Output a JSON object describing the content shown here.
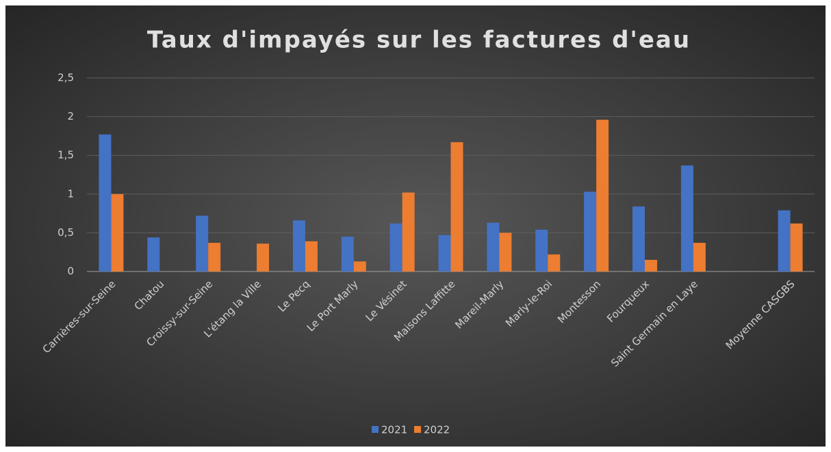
{
  "chart_data": {
    "type": "bar",
    "title": "Taux d'impayés sur les factures d'eau",
    "categories": [
      "Carrières-sur-Seine",
      "Chatou",
      "Croissy-sur-Seine",
      "L'étang la Ville",
      "Le Pecq",
      "Le Port Marly",
      "Le Vésinet",
      "Maisons Laffitte",
      "Mareil-Marly",
      "Marly-le-Roi",
      "Montesson",
      "Fourqueux",
      "Saint Germain en Laye",
      null,
      "Moyenne CASGBS"
    ],
    "series": [
      {
        "name": "2021",
        "color": "#4472c4",
        "values": [
          1.77,
          0.44,
          0.72,
          null,
          0.66,
          0.45,
          0.62,
          0.47,
          0.63,
          0.54,
          1.03,
          0.84,
          1.37,
          null,
          0.79
        ]
      },
      {
        "name": "2022",
        "color": "#ed7d31",
        "values": [
          1.0,
          null,
          0.37,
          0.36,
          0.39,
          0.13,
          1.02,
          1.67,
          0.5,
          0.22,
          1.96,
          0.15,
          0.37,
          null,
          0.62
        ]
      }
    ],
    "ylim": [
      0,
      2.5
    ],
    "yticks": [
      0,
      {
        "value": 0.5,
        "label": "0,5"
      },
      1,
      {
        "value": 1.5,
        "label": "1,5"
      },
      2,
      {
        "value": 2.5,
        "label": "2,5"
      }
    ],
    "grid": true,
    "legend": "bottom"
  }
}
